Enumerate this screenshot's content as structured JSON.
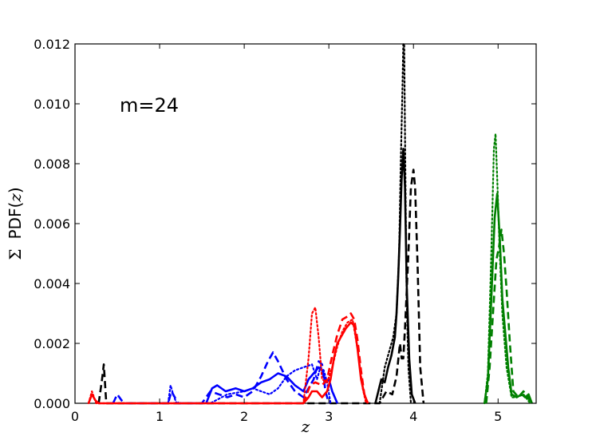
{
  "chart_data": {
    "type": "line",
    "title": "",
    "annotation": "m=24",
    "xlabel": "z",
    "ylabel_sigma": "Σ",
    "ylabel_text": "PDF(",
    "ylabel_var": "z",
    "ylabel_close": ")",
    "xlim": [
      0,
      5.45
    ],
    "ylim": [
      0,
      0.012
    ],
    "xticks": [
      0,
      1,
      2,
      3,
      4,
      5
    ],
    "xtick_labels": [
      "0",
      "1",
      "2",
      "3",
      "4",
      "5"
    ],
    "yticks": [
      0,
      0.002,
      0.004,
      0.006,
      0.008,
      0.01,
      0.012
    ],
    "ytick_labels": [
      "0.000",
      "0.002",
      "0.004",
      "0.006",
      "0.008",
      "0.010",
      "0.012"
    ],
    "grid": false,
    "legend": "none",
    "colors": {
      "black": "#000000",
      "blue": "#0000ff",
      "red": "#ff0000",
      "green": "#008000"
    },
    "series": [
      {
        "color": "black",
        "style": "solid",
        "x": [
          3.55,
          3.62,
          3.66,
          3.7,
          3.74,
          3.78,
          3.8,
          3.82,
          3.84,
          3.86,
          3.88,
          3.9,
          3.92,
          3.95,
          3.98,
          4.02
        ],
        "y": [
          0,
          0.0008,
          0.0007,
          0.0012,
          0.0016,
          0.0022,
          0.003,
          0.0042,
          0.0058,
          0.0075,
          0.0085,
          0.0072,
          0.004,
          0.0015,
          0.0003,
          0
        ]
      },
      {
        "color": "black",
        "style": "dashed",
        "x": [
          0.28,
          0.32,
          0.34,
          0.37,
          3.6,
          3.68,
          3.75,
          3.8,
          3.84,
          3.86,
          3.88,
          3.9,
          3.94,
          3.97,
          4.0,
          4.02,
          4.05,
          4.08,
          4.12
        ],
        "y": [
          0,
          0.0008,
          0.0013,
          0,
          0,
          0.0004,
          0.0003,
          0.0009,
          0.002,
          0.0015,
          0.0015,
          0.0025,
          0.005,
          0.0072,
          0.0078,
          0.0072,
          0.0045,
          0.0012,
          0
        ]
      },
      {
        "color": "black",
        "style": "dotted",
        "x": [
          3.6,
          3.66,
          3.72,
          3.76,
          3.8,
          3.83,
          3.85,
          3.87,
          3.88,
          3.89,
          3.9,
          3.91,
          3.92,
          3.94,
          3.97
        ],
        "y": [
          0,
          0.0012,
          0.0018,
          0.0022,
          0.003,
          0.005,
          0.008,
          0.0105,
          0.012,
          0.012,
          0.009,
          0.006,
          0.0035,
          0.0012,
          0
        ]
      },
      {
        "color": "blue",
        "style": "solid",
        "x": [
          1.55,
          1.62,
          1.68,
          1.78,
          1.9,
          2.0,
          2.1,
          2.2,
          2.3,
          2.4,
          2.5,
          2.6,
          2.7,
          2.76,
          2.82,
          2.88,
          2.92,
          2.96,
          3.0,
          3.04,
          3.1
        ],
        "y": [
          0,
          0.0005,
          0.0006,
          0.0004,
          0.0005,
          0.0004,
          0.0005,
          0.0007,
          0.0008,
          0.001,
          0.0009,
          0.0006,
          0.0004,
          0.0008,
          0.001,
          0.0012,
          0.0011,
          0.0007,
          0.0008,
          0.0004,
          0
        ]
      },
      {
        "color": "blue",
        "style": "dashed",
        "x": [
          0.45,
          0.5,
          0.55,
          0.6,
          1.1,
          1.14,
          1.18,
          1.22,
          1.5,
          1.6,
          1.7,
          1.8,
          1.9,
          2.0,
          2.1,
          2.2,
          2.28,
          2.34,
          2.4,
          2.5,
          2.6,
          2.7,
          2.76,
          2.82,
          2.88,
          2.92,
          2.96,
          3.0
        ],
        "y": [
          0,
          0.0003,
          0.0001,
          0,
          0,
          0.0004,
          0.0002,
          0,
          0,
          0.0004,
          0.0003,
          0.0002,
          0.0003,
          0.0002,
          0.0004,
          0.0009,
          0.0014,
          0.0017,
          0.0014,
          0.0008,
          0.0004,
          0.0002,
          0.0005,
          0.0008,
          0.0014,
          0.0013,
          0.0004,
          0
        ]
      },
      {
        "color": "blue",
        "style": "dotted",
        "x": [
          1.1,
          1.13,
          1.16,
          1.2,
          1.6,
          1.8,
          2.0,
          2.1,
          2.2,
          2.3,
          2.4,
          2.5,
          2.6,
          2.7,
          2.8,
          2.86,
          2.9,
          2.94,
          2.98,
          3.02
        ],
        "y": [
          0,
          0.0006,
          0.0003,
          0,
          0,
          0.0003,
          0.0004,
          0.0005,
          0.0004,
          0.0003,
          0.0005,
          0.0009,
          0.0011,
          0.0012,
          0.0013,
          0.0008,
          0.0012,
          0.0011,
          0.0007,
          0
        ]
      },
      {
        "color": "red",
        "style": "solid",
        "x": [
          0.16,
          0.2,
          0.24,
          0.28,
          2.7,
          2.76,
          2.8,
          2.86,
          2.92,
          2.98,
          3.02,
          3.06,
          3.1,
          3.14,
          3.2,
          3.26,
          3.3,
          3.34,
          3.38,
          3.42,
          3.46
        ],
        "y": [
          0,
          0.0003,
          0.0001,
          0,
          0,
          0.0002,
          0.0004,
          0.0004,
          0.0002,
          0.0004,
          0.0008,
          0.0015,
          0.002,
          0.0022,
          0.0025,
          0.0027,
          0.0026,
          0.0018,
          0.0008,
          0.0003,
          0
        ]
      },
      {
        "color": "red",
        "style": "dashed",
        "x": [
          2.7,
          2.78,
          2.84,
          2.92,
          2.98,
          3.04,
          3.1,
          3.16,
          3.22,
          3.26,
          3.3,
          3.34,
          3.38,
          3.42,
          3.46
        ],
        "y": [
          0,
          0.0006,
          0.0007,
          0.0006,
          0.0008,
          0.0016,
          0.0023,
          0.0028,
          0.0029,
          0.003,
          0.0028,
          0.0021,
          0.0011,
          0.0003,
          0
        ]
      },
      {
        "color": "red",
        "style": "dotted",
        "x": [
          0.16,
          0.2,
          0.25,
          2.7,
          2.76,
          2.8,
          2.84,
          2.88,
          2.92,
          2.98,
          3.04,
          3.1,
          3.16,
          3.22,
          3.28,
          3.34,
          3.4,
          3.44
        ],
        "y": [
          0,
          0.0004,
          0,
          0,
          0.0015,
          0.003,
          0.0032,
          0.0022,
          0.0008,
          0.0007,
          0.0012,
          0.0019,
          0.0024,
          0.0027,
          0.0028,
          0.0018,
          0.0005,
          0
        ]
      },
      {
        "color": "green",
        "style": "solid",
        "x": [
          4.84,
          4.88,
          4.92,
          4.96,
          4.99,
          5.02,
          5.05,
          5.08,
          5.12,
          5.16,
          5.22,
          5.28,
          5.32,
          5.36,
          5.4
        ],
        "y": [
          0,
          0.0008,
          0.0035,
          0.0062,
          0.007,
          0.0055,
          0.0035,
          0.0025,
          0.0012,
          0.0003,
          0.0002,
          0.0003,
          0.0002,
          0.0003,
          0
        ]
      },
      {
        "color": "green",
        "style": "dashed",
        "x": [
          4.86,
          4.9,
          4.94,
          4.98,
          5.01,
          5.04,
          5.07,
          5.1,
          5.14,
          5.18,
          5.24,
          5.3,
          5.35,
          5.4
        ],
        "y": [
          0,
          0.0012,
          0.003,
          0.0048,
          0.0052,
          0.0058,
          0.005,
          0.0038,
          0.002,
          0.0004,
          0.0002,
          0.0004,
          0.0002,
          0
        ]
      },
      {
        "color": "green",
        "style": "dotted",
        "x": [
          4.84,
          4.88,
          4.92,
          4.95,
          4.97,
          4.99,
          5.02,
          5.05,
          5.1,
          5.16,
          5.22,
          5.3,
          5.38
        ],
        "y": [
          0,
          0.001,
          0.005,
          0.0085,
          0.009,
          0.0075,
          0.005,
          0.003,
          0.0012,
          0.0002,
          0.0002,
          0.0003,
          0
        ]
      }
    ]
  }
}
